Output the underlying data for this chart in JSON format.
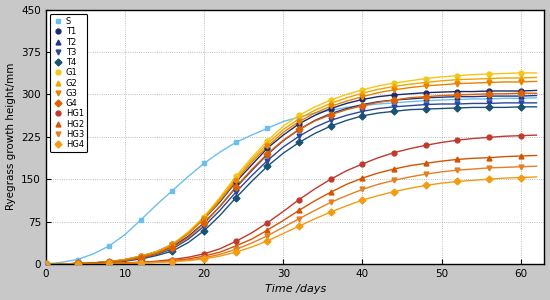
{
  "x": [
    0,
    2,
    4,
    6,
    8,
    10,
    12,
    14,
    16,
    18,
    20,
    22,
    24,
    26,
    28,
    30,
    32,
    34,
    36,
    38,
    40,
    42,
    44,
    46,
    48,
    50,
    52,
    54,
    56,
    58,
    60,
    62
  ],
  "series": {
    "S": [
      0,
      3,
      8,
      18,
      32,
      52,
      78,
      105,
      130,
      155,
      178,
      198,
      215,
      228,
      240,
      252,
      260,
      267,
      272,
      277,
      280,
      283,
      285,
      287,
      289,
      290,
      291,
      292,
      292,
      293,
      293,
      294
    ],
    "T1": [
      0,
      0,
      1,
      2,
      4,
      8,
      14,
      22,
      35,
      55,
      80,
      110,
      145,
      175,
      205,
      228,
      248,
      263,
      275,
      284,
      291,
      296,
      299,
      301,
      303,
      304,
      305,
      305,
      306,
      306,
      306,
      307
    ],
    "T2": [
      0,
      0,
      1,
      2,
      4,
      7,
      12,
      19,
      31,
      49,
      73,
      102,
      135,
      165,
      194,
      218,
      238,
      254,
      266,
      275,
      282,
      287,
      290,
      292,
      294,
      295,
      296,
      296,
      297,
      297,
      297,
      298
    ],
    "T3": [
      0,
      0,
      1,
      2,
      3,
      6,
      11,
      17,
      27,
      44,
      67,
      95,
      127,
      156,
      183,
      207,
      226,
      242,
      254,
      263,
      270,
      275,
      278,
      280,
      282,
      283,
      283,
      284,
      284,
      285,
      285,
      285
    ],
    "T4": [
      0,
      0,
      1,
      2,
      3,
      5,
      9,
      15,
      23,
      38,
      59,
      86,
      117,
      146,
      173,
      196,
      215,
      231,
      244,
      254,
      262,
      267,
      270,
      273,
      274,
      275,
      276,
      277,
      277,
      277,
      278,
      278
    ],
    "G1": [
      0,
      0,
      1,
      2,
      4,
      8,
      14,
      22,
      35,
      57,
      84,
      118,
      155,
      188,
      218,
      244,
      263,
      278,
      290,
      300,
      308,
      315,
      320,
      324,
      328,
      331,
      333,
      335,
      336,
      337,
      338,
      338
    ],
    "G2": [
      0,
      0,
      1,
      2,
      4,
      8,
      13,
      21,
      34,
      55,
      82,
      115,
      151,
      184,
      213,
      238,
      257,
      272,
      284,
      294,
      302,
      309,
      314,
      318,
      321,
      324,
      326,
      327,
      328,
      329,
      329,
      330
    ],
    "G3": [
      0,
      0,
      1,
      2,
      4,
      7,
      13,
      20,
      33,
      53,
      80,
      112,
      147,
      180,
      208,
      233,
      252,
      267,
      279,
      288,
      296,
      303,
      308,
      312,
      315,
      317,
      319,
      320,
      321,
      322,
      322,
      323
    ],
    "G4": [
      0,
      0,
      1,
      2,
      3,
      6,
      11,
      18,
      29,
      47,
      72,
      102,
      136,
      167,
      195,
      219,
      238,
      253,
      264,
      273,
      280,
      286,
      290,
      294,
      296,
      298,
      299,
      300,
      301,
      301,
      302,
      302
    ],
    "HG1": [
      0,
      0,
      0,
      1,
      1,
      2,
      3,
      5,
      8,
      12,
      18,
      27,
      40,
      55,
      73,
      93,
      114,
      133,
      150,
      165,
      177,
      188,
      197,
      204,
      210,
      215,
      219,
      222,
      224,
      226,
      227,
      228
    ],
    "HG2": [
      0,
      0,
      0,
      1,
      1,
      2,
      3,
      4,
      6,
      9,
      14,
      21,
      32,
      44,
      60,
      77,
      95,
      112,
      127,
      141,
      152,
      161,
      168,
      174,
      178,
      182,
      185,
      187,
      188,
      190,
      191,
      192
    ],
    "HG3": [
      0,
      0,
      0,
      0,
      1,
      1,
      2,
      3,
      5,
      7,
      11,
      17,
      26,
      37,
      50,
      65,
      80,
      95,
      109,
      121,
      132,
      141,
      148,
      154,
      159,
      163,
      166,
      168,
      170,
      171,
      172,
      173
    ],
    "HG4": [
      0,
      0,
      0,
      0,
      1,
      1,
      2,
      3,
      4,
      6,
      9,
      14,
      21,
      30,
      41,
      54,
      67,
      80,
      92,
      103,
      113,
      121,
      128,
      134,
      139,
      143,
      146,
      148,
      150,
      152,
      153,
      154
    ]
  },
  "colors": {
    "S": "#6bbfef",
    "T1": "#1a2a6c",
    "T2": "#223388",
    "T3": "#2e45a0",
    "T4": "#1a5276",
    "G1": "#f5c518",
    "G2": "#f0a500",
    "G3": "#e88200",
    "G4": "#e06000",
    "HG1": "#c0392b",
    "HG2": "#d35400",
    "HG3": "#e67e22",
    "HG4": "#f39c12"
  },
  "markers": {
    "S": "s",
    "T1": "o",
    "T2": "^",
    "T3": "v",
    "T4": "D",
    "G1": "o",
    "G2": "^",
    "G3": "v",
    "G4": "D",
    "HG1": "o",
    "HG2": "^",
    "HG3": "v",
    "HG4": "D"
  },
  "labels": {
    "S": "S",
    "T1": "T1",
    "T2": "T2",
    "T3": "T3",
    "T4": "T4",
    "G1": "G1",
    "G2": "G2",
    "G3": "G3",
    "G4": "G4",
    "HG1": "HG1",
    "HG2": "HG2",
    "HG3": "HG3",
    "HG4": "HG4"
  },
  "xlabel": "Time /days",
  "ylabel": "Ryegrass growth height/mm",
  "xlim": [
    0,
    63
  ],
  "ylim": [
    0,
    450
  ],
  "yticks": [
    0,
    75,
    150,
    225,
    300,
    375,
    450
  ],
  "xticks": [
    0,
    10,
    20,
    30,
    40,
    50,
    60
  ],
  "bg_color": "#c8c8c8",
  "plot_bg": "#ffffff"
}
